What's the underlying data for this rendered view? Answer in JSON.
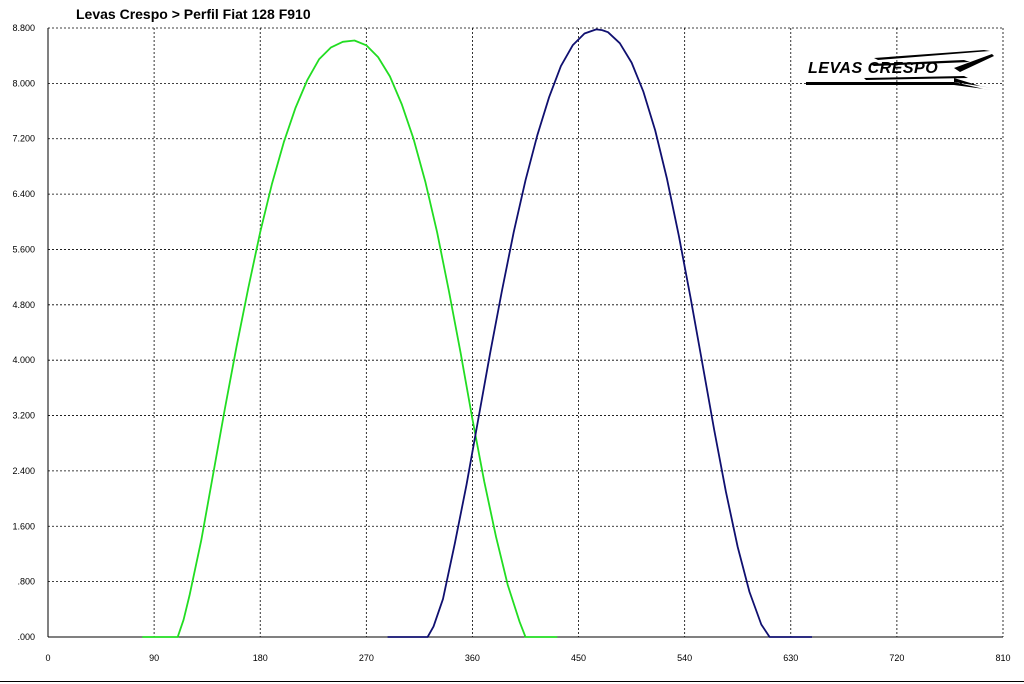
{
  "logo": {
    "text": "LEVAS CRESPO"
  },
  "chart_data": {
    "type": "line",
    "title": "Levas Crespo > Perfil Fiat 128 F910",
    "xlabel": "",
    "ylabel": "",
    "xlim": [
      0,
      810
    ],
    "ylim": [
      0,
      8.8
    ],
    "grid": true,
    "x_ticks": [
      0,
      90,
      180,
      270,
      360,
      450,
      540,
      630,
      720,
      810
    ],
    "x_tick_labels": [
      "0",
      "90",
      "180",
      "270",
      "360",
      "450",
      "540",
      "630",
      "720",
      "810"
    ],
    "y_ticks": [
      0,
      0.8,
      1.6,
      2.4,
      3.2,
      4.0,
      4.8,
      5.6,
      6.4,
      7.2,
      8.0,
      8.8
    ],
    "y_tick_labels": [
      ".000",
      ".800",
      "1.600",
      "2.400",
      "3.200",
      "4.000",
      "4.800",
      "5.600",
      "6.400",
      "7.200",
      "8.000",
      "8.800"
    ],
    "series": [
      {
        "color": "#22dd22",
        "x": [
          80,
          110,
          115,
          120,
          130,
          140,
          150,
          160,
          170,
          180,
          190,
          200,
          210,
          220,
          230,
          240,
          250,
          260,
          270,
          280,
          290,
          300,
          310,
          320,
          330,
          340,
          350,
          360,
          370,
          380,
          390,
          400,
          405,
          420,
          432
        ],
        "values": [
          0,
          0,
          0.25,
          0.6,
          1.4,
          2.35,
          3.3,
          4.2,
          5.05,
          5.85,
          6.55,
          7.15,
          7.65,
          8.05,
          8.35,
          8.52,
          8.6,
          8.62,
          8.55,
          8.38,
          8.1,
          7.7,
          7.2,
          6.58,
          5.85,
          5.0,
          4.1,
          3.15,
          2.25,
          1.45,
          0.75,
          0.22,
          0,
          0,
          0
        ]
      },
      {
        "color": "#101070",
        "x": [
          288,
          322,
          327,
          335,
          345,
          355,
          365,
          375,
          385,
          395,
          405,
          415,
          425,
          435,
          445,
          455,
          465,
          470,
          475,
          485,
          495,
          505,
          515,
          525,
          535,
          545,
          555,
          565,
          575,
          585,
          595,
          605,
          612,
          630,
          648
        ],
        "values": [
          0,
          0,
          0.15,
          0.55,
          1.35,
          2.2,
          3.15,
          4.1,
          5.0,
          5.85,
          6.6,
          7.25,
          7.8,
          8.25,
          8.55,
          8.72,
          8.78,
          8.77,
          8.74,
          8.58,
          8.3,
          7.88,
          7.32,
          6.62,
          5.8,
          4.9,
          3.95,
          3.0,
          2.1,
          1.3,
          0.65,
          0.18,
          0,
          0,
          0
        ]
      }
    ]
  }
}
